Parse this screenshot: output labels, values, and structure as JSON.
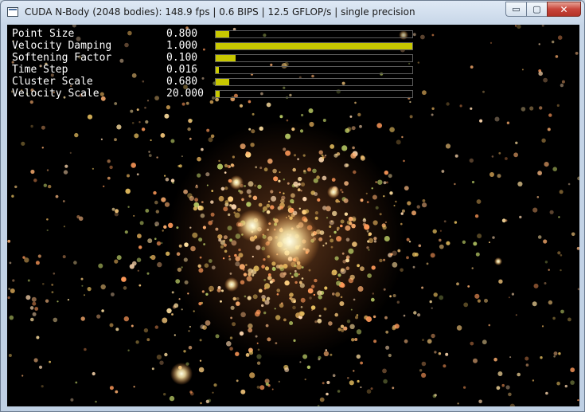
{
  "window": {
    "title": "CUDA N-Body (2048 bodies): 148.9 fps | 0.6 BIPS | 12.5 GFLOP/s | single precision",
    "buttons": {
      "minimize": "▭",
      "maximize": "▢",
      "close": "✕"
    }
  },
  "params": [
    {
      "label": "Point Size",
      "value": "0.800",
      "fraction": 0.07
    },
    {
      "label": "Velocity Damping",
      "value": "1.000",
      "fraction": 1.0
    },
    {
      "label": "Softening Factor",
      "value": "0.100",
      "fraction": 0.1
    },
    {
      "label": "Time Step",
      "value": "0.016",
      "fraction": 0.016
    },
    {
      "label": "Cluster Scale",
      "value": "0.680",
      "fraction": 0.068
    },
    {
      "label": "Velocity Scale",
      "value": "20.000",
      "fraction": 0.02
    }
  ],
  "colors": {
    "slider_fill": "#c8c800",
    "background": "#000000"
  }
}
